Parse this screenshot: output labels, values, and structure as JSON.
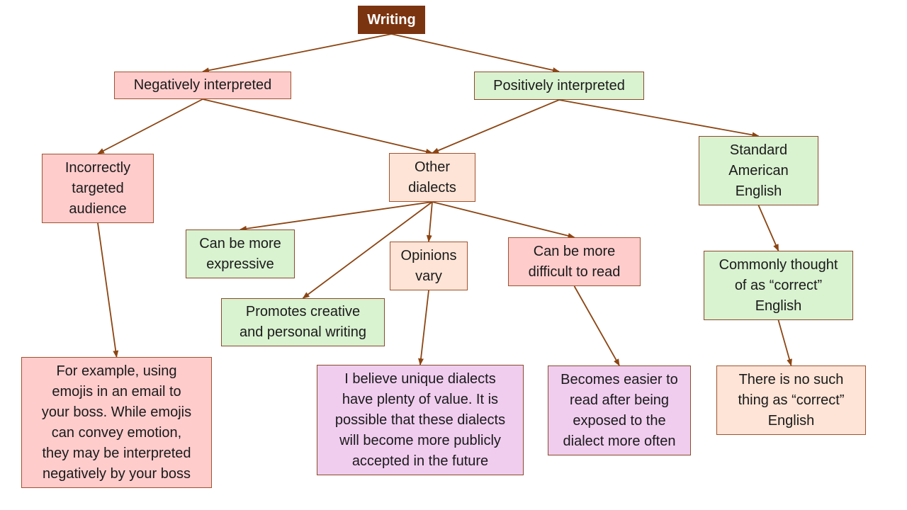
{
  "colors": {
    "root": "#7b3410",
    "negative": "#ffcccc",
    "positive": "#d9f2d0",
    "neutral": "#fde4d6",
    "opinion": "#f0cdef",
    "connector": "#8b4513"
  },
  "nodes": {
    "writing": "Writing",
    "negatively_interpreted": "Negatively interpreted",
    "positively_interpreted": "Positively interpreted",
    "incorrectly_targeted": "Incorrectly\ntargeted\naudience",
    "other_dialects": "Other\ndialects",
    "standard_american": "Standard\nAmerican\nEnglish",
    "more_expressive": "Can be more\nexpressive",
    "promotes_creative": "Promotes creative\nand personal writing",
    "opinions_vary": "Opinions\nvary",
    "difficult_to_read": "Can be more\ndifficult to read",
    "commonly_thought": "Commonly thought\nof as “correct”\nEnglish",
    "example_emojis": "For example, using\nemojis in an email to\nyour boss. While emojis\ncan convey emotion,\nthey may be interpreted\nnegatively by your boss",
    "unique_dialects": "I believe unique dialects\nhave plenty of value. It is\npossible that these dialects\nwill become more publicly\naccepted in the future",
    "becomes_easier": "Becomes easier to\nread after being\nexposed to the\ndialect more often",
    "no_correct": "There is no such\nthing as “correct”\nEnglish"
  },
  "edges": [
    [
      "writing",
      "negatively_interpreted"
    ],
    [
      "writing",
      "positively_interpreted"
    ],
    [
      "negatively_interpreted",
      "incorrectly_targeted"
    ],
    [
      "negatively_interpreted",
      "other_dialects"
    ],
    [
      "positively_interpreted",
      "other_dialects"
    ],
    [
      "positively_interpreted",
      "standard_american"
    ],
    [
      "incorrectly_targeted",
      "example_emojis"
    ],
    [
      "other_dialects",
      "more_expressive"
    ],
    [
      "other_dialects",
      "promotes_creative"
    ],
    [
      "other_dialects",
      "opinions_vary"
    ],
    [
      "other_dialects",
      "difficult_to_read"
    ],
    [
      "opinions_vary",
      "unique_dialects"
    ],
    [
      "difficult_to_read",
      "becomes_easier"
    ],
    [
      "standard_american",
      "commonly_thought"
    ],
    [
      "commonly_thought",
      "no_correct"
    ]
  ]
}
